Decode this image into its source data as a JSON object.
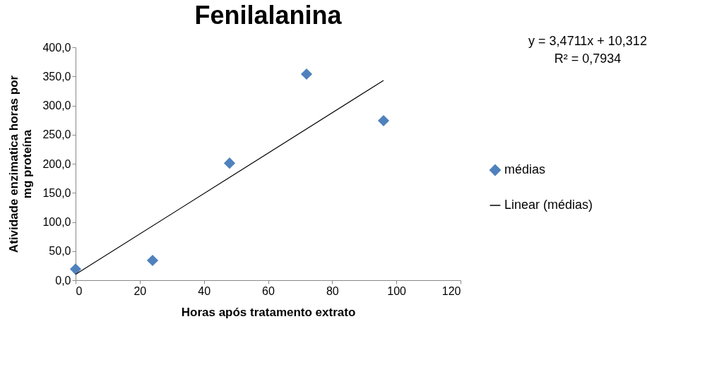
{
  "chart_data": {
    "type": "scatter",
    "title": "Fenilalanina",
    "xlabel": "Horas após tratamento extrato",
    "ylabel": "Atividade enzimatica horas por mg proteína",
    "xlim": [
      0,
      120
    ],
    "xticks": [
      0,
      20,
      40,
      60,
      80,
      100,
      120
    ],
    "ylim": [
      0,
      400
    ],
    "yticks": [
      {
        "value": 0,
        "label": "0,0"
      },
      {
        "value": 50,
        "label": "50,0"
      },
      {
        "value": 100,
        "label": "100,0"
      },
      {
        "value": 150,
        "label": "150,0"
      },
      {
        "value": 200,
        "label": "200,0"
      },
      {
        "value": 250,
        "label": "250,0"
      },
      {
        "value": 300,
        "label": "300,0"
      },
      {
        "value": 350,
        "label": "350,0"
      },
      {
        "value": 400,
        "label": "400,0"
      }
    ],
    "grid": false,
    "legend": "right",
    "series": [
      {
        "name": "médias",
        "marker": "diamond",
        "color": "#4f81bd",
        "x": [
          0,
          24,
          48,
          72,
          96
        ],
        "values": [
          19,
          34,
          201,
          354,
          274
        ]
      },
      {
        "name": "Linear (médias)",
        "type": "line",
        "marker": "none",
        "color": "#000000",
        "x": [
          0,
          96
        ],
        "values": [
          10,
          343
        ]
      }
    ],
    "annotations": [
      "y = 3,4711x + 10,312",
      "R² = 0,7934"
    ]
  }
}
